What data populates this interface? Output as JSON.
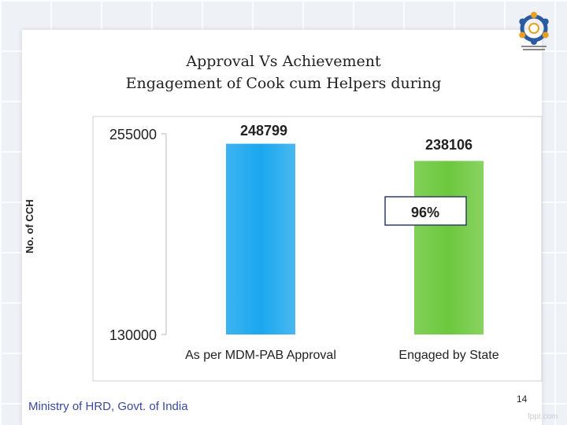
{
  "slide": {
    "title_line1": "Approval Vs Achievement",
    "title_line2": "Engagement of Cook cum Helpers during",
    "footer": "Ministry of HRD, Govt. of India",
    "page_number": "14",
    "watermark": "fppt.com",
    "logo_icon": "mdm-logo-icon"
  },
  "chart_data": {
    "type": "bar",
    "title": "",
    "xlabel": "",
    "ylabel": "No. of CCH",
    "categories": [
      "As per MDM-PAB Approval",
      "Engaged by State"
    ],
    "values": [
      248799,
      238106
    ],
    "value_labels": [
      "248799",
      "238106"
    ],
    "ylim": [
      130000,
      255000
    ],
    "y_ticks": [
      130000,
      255000
    ],
    "y_tick_labels": [
      "130000",
      "255000"
    ],
    "annotation": "96%",
    "colors": [
      "#1aa7ee",
      "#6cc83c"
    ],
    "grid": false,
    "legend": "none"
  }
}
